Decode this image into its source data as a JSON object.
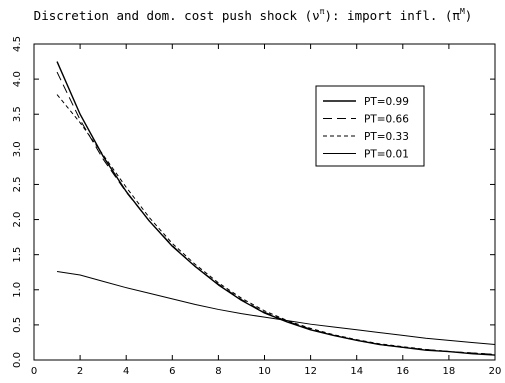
{
  "chart_data": {
    "type": "line",
    "title": {
      "prefix": "Discretion and dom. cost push shock (",
      "nu_base": "ν",
      "nu_sup": "π",
      "middle": "): import infl. (",
      "pi_base": "π",
      "pi_sup": "M",
      "suffix": ")"
    },
    "xlabel": "",
    "ylabel": "",
    "xlim": [
      0,
      20
    ],
    "ylim": [
      0,
      4.5
    ],
    "x_ticks": [
      "0",
      "2",
      "4",
      "6",
      "8",
      "10",
      "12",
      "14",
      "16",
      "18",
      "20"
    ],
    "y_ticks": [
      "0.0",
      "0.5",
      "1.0",
      "1.5",
      "2.0",
      "2.5",
      "3.0",
      "3.5",
      "4.0",
      "4.5"
    ],
    "legend_position": "top-right",
    "x": [
      1,
      2,
      3,
      4,
      5,
      6,
      7,
      8,
      9,
      10,
      11,
      12,
      13,
      14,
      15,
      16,
      17,
      18,
      19,
      20
    ],
    "series": [
      {
        "name": "PT=0.99",
        "line_style": "solid",
        "values": [
          4.25,
          3.5,
          2.9,
          2.4,
          1.98,
          1.62,
          1.33,
          1.07,
          0.85,
          0.67,
          0.54,
          0.43,
          0.35,
          0.28,
          0.22,
          0.18,
          0.14,
          0.12,
          0.09,
          0.07
        ]
      },
      {
        "name": "PT=0.66",
        "line_style": "long-dash",
        "values": [
          4.1,
          3.42,
          2.86,
          2.39,
          1.98,
          1.63,
          1.33,
          1.08,
          0.86,
          0.68,
          0.55,
          0.44,
          0.35,
          0.28,
          0.22,
          0.18,
          0.15,
          0.12,
          0.1,
          0.08
        ]
      },
      {
        "name": "PT=0.33",
        "line_style": "short-dash",
        "values": [
          3.78,
          3.38,
          2.92,
          2.46,
          2.03,
          1.66,
          1.36,
          1.1,
          0.88,
          0.7,
          0.56,
          0.45,
          0.36,
          0.29,
          0.23,
          0.19,
          0.15,
          0.12,
          0.1,
          0.08
        ]
      },
      {
        "name": "PT=0.01",
        "line_style": "thin-solid",
        "values": [
          1.26,
          1.21,
          1.12,
          1.03,
          0.95,
          0.87,
          0.79,
          0.72,
          0.66,
          0.61,
          0.56,
          0.51,
          0.47,
          0.43,
          0.39,
          0.35,
          0.31,
          0.28,
          0.25,
          0.22
        ]
      }
    ]
  }
}
